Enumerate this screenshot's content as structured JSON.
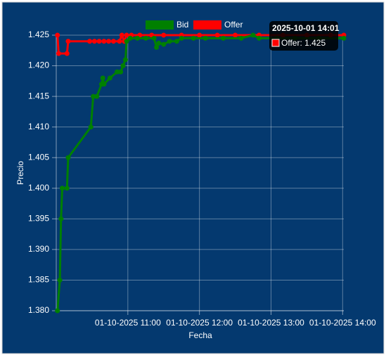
{
  "chart_data": {
    "type": "line",
    "x_label": "Fecha",
    "y_label": "Precio",
    "xlim": [
      "01-10-2025 10:00",
      "01-10-2025 14:01"
    ],
    "xticks": [
      "01-10-2025 11:00",
      "01-10-2025 12:00",
      "01-10-2025 13:00",
      "01-10-2025 14:00"
    ],
    "ylim": [
      1.38,
      1.425
    ],
    "yticks": [
      {
        "value": 1.38,
        "label": "1.380"
      },
      1.385,
      {
        "value": 1.39,
        "label": "1.390"
      },
      1.395,
      {
        "value": 1.4,
        "label": "1.400"
      },
      1.405,
      {
        "value": 1.41,
        "label": "1.410"
      },
      1.415,
      {
        "value": 1.42,
        "label": "1.420"
      },
      1.425
    ],
    "grid": true,
    "legend": "top",
    "series": [
      {
        "name": "Bid",
        "color": "#008000",
        "x": [
          "01-10-2025 10:01",
          "01-10-2025 10:03",
          "01-10-2025 10:04",
          "01-10-2025 10:05",
          "01-10-2025 10:09",
          "01-10-2025 10:10",
          "01-10-2025 10:29",
          "01-10-2025 10:31",
          "01-10-2025 10:34",
          "01-10-2025 10:38",
          "01-10-2025 10:39",
          "01-10-2025 10:40",
          "01-10-2025 10:45",
          "01-10-2025 10:51",
          "01-10-2025 10:54",
          "01-10-2025 10:56",
          "01-10-2025 10:58",
          "01-10-2025 10:59",
          "01-10-2025 11:02",
          "01-10-2025 11:08",
          "01-10-2025 11:15",
          "01-10-2025 11:22",
          "01-10-2025 11:24",
          "01-10-2025 11:26",
          "01-10-2025 11:30",
          "01-10-2025 11:35",
          "01-10-2025 11:41",
          "01-10-2025 11:45",
          "01-10-2025 11:55",
          "01-10-2025 12:05",
          "01-10-2025 12:20",
          "01-10-2025 12:35",
          "01-10-2025 12:45",
          "01-10-2025 12:50",
          "01-10-2025 13:05",
          "01-10-2025 13:20",
          "01-10-2025 13:40",
          "01-10-2025 14:01"
        ],
        "values": [
          1.38,
          1.385,
          1.395,
          1.4,
          1.4,
          1.405,
          1.41,
          1.415,
          1.415,
          1.417,
          1.418,
          1.417,
          1.418,
          1.419,
          1.419,
          1.42,
          1.421,
          1.424,
          1.4245,
          1.4245,
          1.4245,
          1.4245,
          1.423,
          1.4237,
          1.4235,
          1.424,
          1.424,
          1.4245,
          1.4245,
          1.4245,
          1.4245,
          1.4245,
          1.425,
          1.4245,
          1.4245,
          1.4245,
          1.4245,
          1.4245
        ]
      },
      {
        "name": "Offer",
        "color": "#ff0000",
        "x": [
          "01-10-2025 10:01",
          "01-10-2025 10:02",
          "01-10-2025 10:09",
          "01-10-2025 10:10",
          "01-10-2025 10:28",
          "01-10-2025 10:32",
          "01-10-2025 10:36",
          "01-10-2025 10:40",
          "01-10-2025 10:44",
          "01-10-2025 10:48",
          "01-10-2025 10:53",
          "01-10-2025 10:55",
          "01-10-2025 10:57",
          "01-10-2025 10:59",
          "01-10-2025 11:03",
          "01-10-2025 11:10",
          "01-10-2025 11:20",
          "01-10-2025 11:30",
          "01-10-2025 11:45",
          "01-10-2025 12:00",
          "01-10-2025 12:15",
          "01-10-2025 12:30",
          "01-10-2025 12:50",
          "01-10-2025 13:10",
          "01-10-2025 13:30",
          "01-10-2025 13:50",
          "01-10-2025 14:01"
        ],
        "values": [
          1.425,
          1.422,
          1.422,
          1.424,
          1.424,
          1.424,
          1.424,
          1.424,
          1.424,
          1.424,
          1.424,
          1.425,
          1.424,
          1.425,
          1.425,
          1.425,
          1.425,
          1.425,
          1.425,
          1.425,
          1.425,
          1.425,
          1.425,
          1.425,
          1.425,
          1.425,
          1.425
        ]
      }
    ],
    "tooltip": {
      "title": "2025-10-01 14:01",
      "label": "Offer: 1.425",
      "series": 1
    }
  }
}
